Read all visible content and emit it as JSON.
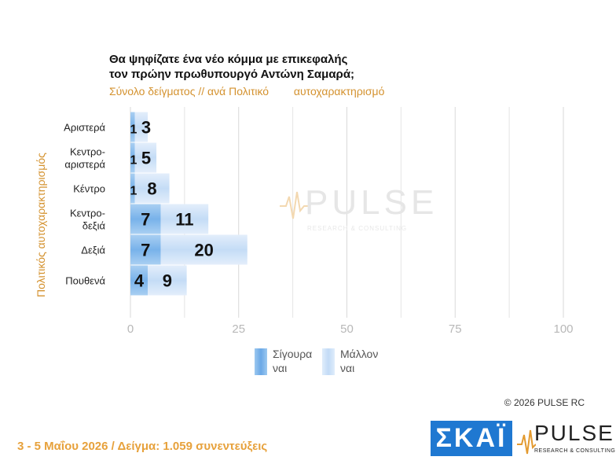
{
  "header": {
    "title_line1": "Θα ψηφίζατε ένα νέο κόμμα με επικεφαλής",
    "title_line2": "τον πρώην πρωθυπουργό Αντώνη Σαμαρά;",
    "subtitle_part1": "Σύνολο δείγματος // ανά Πολιτικό",
    "subtitle_part2": "αυτοχαρακτηρισμό"
  },
  "axis": {
    "ylabel": "Πολιτικός αυτοχαρακτηρισμός"
  },
  "colors": {
    "series1": "#7fb6ea",
    "series2": "#c6def7",
    "grid": "#d9d9d9",
    "orange": "#d4922f"
  },
  "legend": {
    "series1_line1": "Σίγουρα",
    "series1_line2": "ναι",
    "series2_line1": "Μάλλον",
    "series2_line2": "ναι"
  },
  "watermark": {
    "name": "PULSE",
    "tagline": "RESEARCH & CONSULTING"
  },
  "footer": {
    "copyright": "© 2026 PULSE RC",
    "fieldwork": "3 - 5 Μαΐου 2026 / Δείγμα: 1.059 συνεντεύξεις",
    "logo_skai": "ΣΚΑΪ",
    "logo_pulse": "PULSE",
    "logo_pulse_tag": "RESEARCH & CONSULTING"
  },
  "chart_data": {
    "type": "bar",
    "orientation": "horizontal",
    "stacked": true,
    "categories": [
      [
        "Αριστερά"
      ],
      [
        "Κεντρο-",
        "αριστερά"
      ],
      [
        "Κέντρο"
      ],
      [
        "Κεντρο-",
        "δεξιά"
      ],
      [
        "Δεξιά"
      ],
      [
        "Πουθενά"
      ]
    ],
    "series": [
      {
        "name": "Σίγουρα ναι",
        "values": [
          1,
          1,
          1,
          7,
          7,
          4
        ]
      },
      {
        "name": "Μάλλον ναι",
        "values": [
          3,
          5,
          8,
          11,
          20,
          9
        ]
      }
    ],
    "xlim": [
      0,
      100
    ],
    "xticks": [
      0,
      25,
      50,
      75,
      100
    ],
    "grid": true,
    "legend_position": "bottom"
  }
}
